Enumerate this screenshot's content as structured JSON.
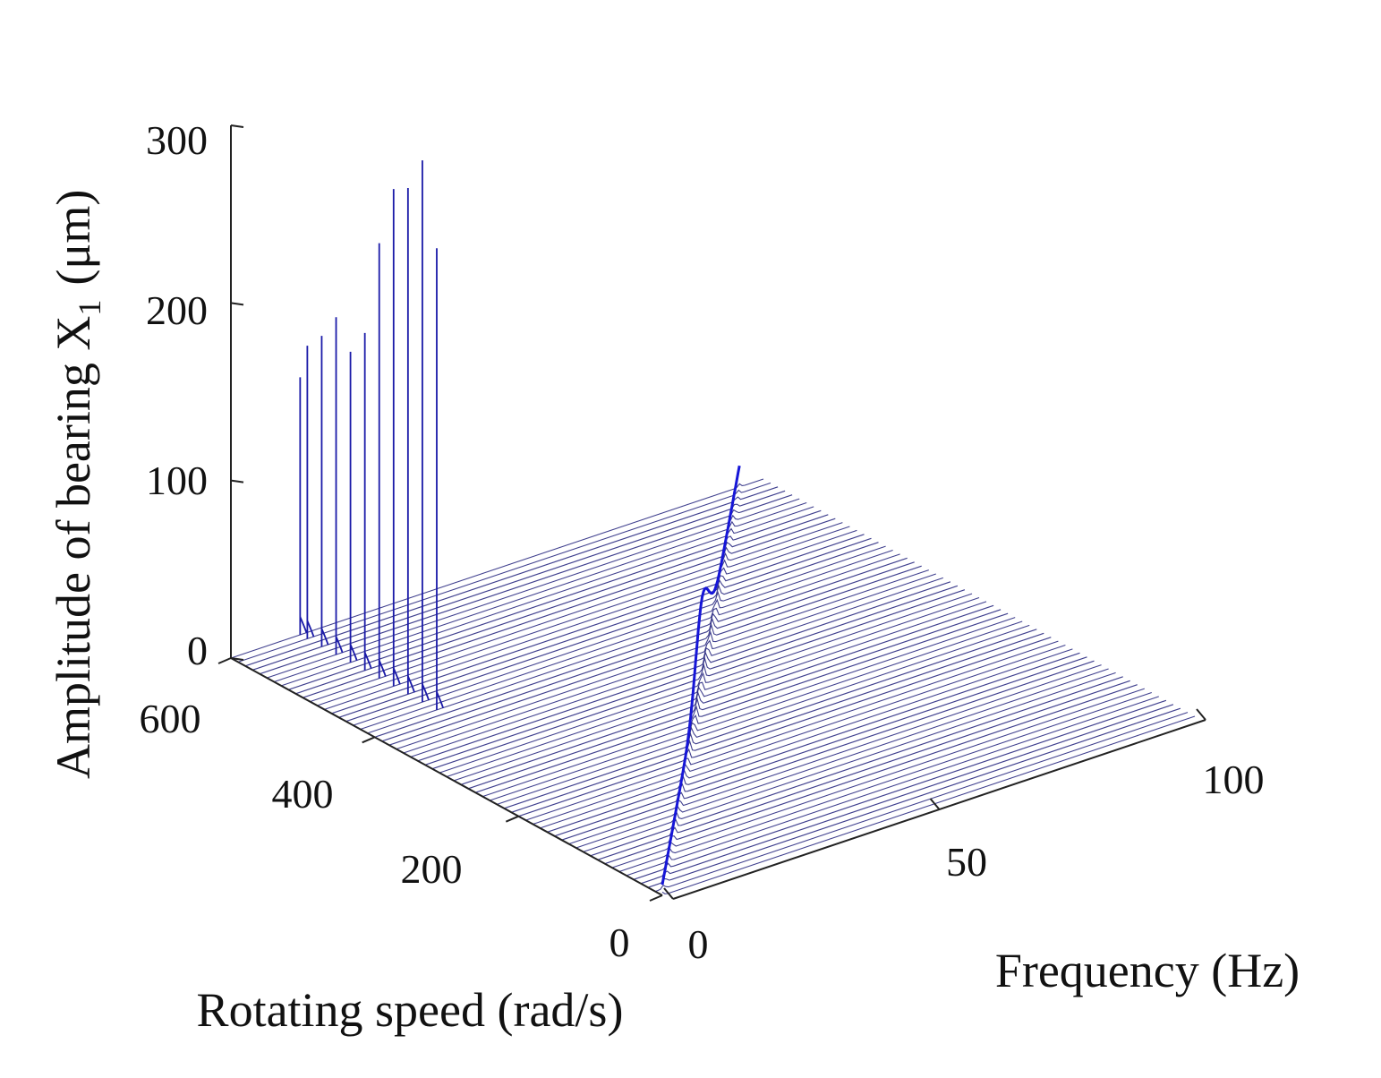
{
  "chart_data": {
    "type": "waterfall",
    "zlabel": "Amplitude of bearing X",
    "zlabel_subscript": "1",
    "zlabel_unit": "(μm)",
    "xlabel": "Frequency (Hz)",
    "ylabel": "Rotating speed (rad/s)",
    "zlim": [
      0,
      300
    ],
    "xlim": [
      0,
      100
    ],
    "ylim": [
      0,
      600
    ],
    "z_ticks": [
      "0",
      "100",
      "200",
      "300"
    ],
    "x_ticks": [
      "0",
      "50",
      "100"
    ],
    "y_ticks": [
      "0",
      "200",
      "400",
      "600"
    ],
    "line_color": "#1a1aa8",
    "slice_count": 60,
    "peaks": [
      {
        "frequency": 13,
        "speed": 410,
        "amplitude": 260
      },
      {
        "frequency": 13,
        "speed": 430,
        "amplitude": 305
      },
      {
        "frequency": 13,
        "speed": 450,
        "amplitude": 285
      },
      {
        "frequency": 13,
        "speed": 470,
        "amplitude": 280
      },
      {
        "frequency": 13,
        "speed": 490,
        "amplitude": 245
      },
      {
        "frequency": 13,
        "speed": 510,
        "amplitude": 190
      },
      {
        "frequency": 13,
        "speed": 530,
        "amplitude": 175
      },
      {
        "frequency": 13,
        "speed": 550,
        "amplitude": 190
      },
      {
        "frequency": 13,
        "speed": 570,
        "amplitude": 175
      },
      {
        "frequency": 13,
        "speed": 590,
        "amplitude": 165
      },
      {
        "frequency": 13,
        "speed": 600,
        "amplitude": 145
      }
    ],
    "synchronous_ridge": {
      "amplitude_max": 60,
      "speed_range": [
        0,
        600
      ]
    }
  }
}
